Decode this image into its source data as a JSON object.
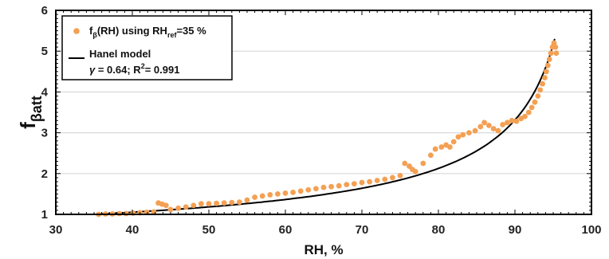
{
  "chart_data": {
    "type": "scatter",
    "xlabel": "RH, %",
    "ylabel_main": "f",
    "ylabel_sub": "βatt",
    "xlim": [
      30,
      100
    ],
    "ylim": [
      1,
      6
    ],
    "xticks": [
      "30",
      "40",
      "50",
      "60",
      "70",
      "80",
      "90",
      "100"
    ],
    "yticks": [
      "1",
      "2",
      "3",
      "4",
      "5",
      "6"
    ],
    "grid": "horizontal",
    "legend_position": "top-left",
    "legend": {
      "scatter_main": "f",
      "scatter_sub": "β",
      "scatter_mid": "(RH) using RH",
      "scatter_sub2": "ref",
      "scatter_end": "=35 %",
      "model_label": "Hanel model",
      "gamma_symbol": "γ",
      "gamma_text": " = 0.64; R",
      "r2_sup": "2",
      "r2_text": "= 0.991"
    },
    "colors": {
      "scatter": "#f4a053",
      "model": "#000000",
      "grid": "#d9d9d9"
    },
    "series": [
      {
        "name": "fβ(RH) using RHref=35 %",
        "kind": "scatter",
        "points": [
          [
            35.6,
            1.0
          ],
          [
            36.5,
            1.01
          ],
          [
            37.4,
            1.01
          ],
          [
            38.3,
            1.02
          ],
          [
            39.2,
            1.02
          ],
          [
            40.1,
            1.03
          ],
          [
            41.0,
            1.04
          ],
          [
            41.9,
            1.05
          ],
          [
            42.8,
            1.06
          ],
          [
            43.4,
            1.28
          ],
          [
            43.9,
            1.25
          ],
          [
            44.4,
            1.22
          ],
          [
            45.0,
            1.12
          ],
          [
            46.0,
            1.15
          ],
          [
            47.0,
            1.18
          ],
          [
            48.0,
            1.22
          ],
          [
            49.0,
            1.26
          ],
          [
            50.0,
            1.26
          ],
          [
            51.0,
            1.27
          ],
          [
            52.0,
            1.28
          ],
          [
            53.0,
            1.29
          ],
          [
            54.0,
            1.3
          ],
          [
            55.0,
            1.35
          ],
          [
            56.0,
            1.42
          ],
          [
            57.0,
            1.45
          ],
          [
            58.0,
            1.48
          ],
          [
            59.0,
            1.5
          ],
          [
            60.0,
            1.52
          ],
          [
            61.0,
            1.54
          ],
          [
            62.0,
            1.57
          ],
          [
            63.0,
            1.6
          ],
          [
            64.0,
            1.63
          ],
          [
            65.0,
            1.66
          ],
          [
            66.0,
            1.68
          ],
          [
            67.0,
            1.7
          ],
          [
            68.0,
            1.73
          ],
          [
            69.0,
            1.75
          ],
          [
            70.0,
            1.78
          ],
          [
            71.0,
            1.8
          ],
          [
            72.0,
            1.83
          ],
          [
            73.0,
            1.86
          ],
          [
            74.0,
            1.9
          ],
          [
            75.0,
            1.95
          ],
          [
            75.6,
            2.25
          ],
          [
            76.2,
            2.18
          ],
          [
            76.6,
            2.1
          ],
          [
            77.0,
            2.05
          ],
          [
            78.0,
            2.25
          ],
          [
            79.0,
            2.45
          ],
          [
            79.6,
            2.6
          ],
          [
            80.4,
            2.65
          ],
          [
            81.0,
            2.7
          ],
          [
            81.5,
            2.65
          ],
          [
            82.0,
            2.78
          ],
          [
            82.6,
            2.9
          ],
          [
            83.2,
            2.95
          ],
          [
            84.0,
            3.0
          ],
          [
            84.8,
            3.05
          ],
          [
            85.5,
            3.15
          ],
          [
            86.0,
            3.25
          ],
          [
            86.6,
            3.18
          ],
          [
            87.2,
            3.1
          ],
          [
            87.8,
            3.05
          ],
          [
            88.4,
            3.2
          ],
          [
            89.0,
            3.25
          ],
          [
            89.6,
            3.3
          ],
          [
            90.2,
            3.28
          ],
          [
            90.8,
            3.35
          ],
          [
            91.3,
            3.4
          ],
          [
            91.8,
            3.5
          ],
          [
            92.2,
            3.62
          ],
          [
            92.6,
            3.75
          ],
          [
            93.0,
            3.9
          ],
          [
            93.3,
            4.05
          ],
          [
            93.6,
            4.2
          ],
          [
            93.9,
            4.35
          ],
          [
            94.1,
            4.5
          ],
          [
            94.3,
            4.65
          ],
          [
            94.5,
            4.8
          ],
          [
            94.7,
            4.95
          ],
          [
            94.9,
            5.1
          ],
          [
            95.1,
            5.2
          ],
          [
            95.3,
            5.1
          ],
          [
            95.4,
            4.95
          ]
        ]
      },
      {
        "name": "Hanel model",
        "kind": "line",
        "gamma": 0.64,
        "r2": 0.991,
        "x": [
          35.6,
          40,
          45,
          50,
          55,
          60,
          65,
          70,
          75,
          80,
          85,
          88,
          90,
          92,
          93,
          94,
          95.2
        ]
      }
    ]
  }
}
